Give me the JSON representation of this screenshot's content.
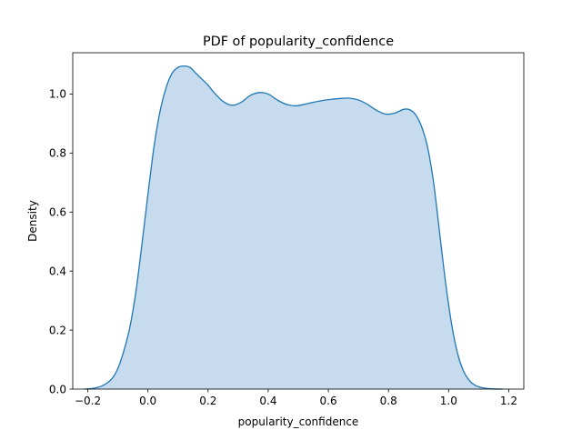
{
  "chart_data": {
    "type": "area",
    "title": "PDF of popularity_confidence",
    "xlabel": "popularity_confidence",
    "ylabel": "Density",
    "xlim": [
      -0.25,
      1.25
    ],
    "ylim": [
      0.0,
      1.14
    ],
    "xticks": [
      -0.2,
      0.0,
      0.2,
      0.4,
      0.6,
      0.8,
      1.0,
      1.2
    ],
    "xtick_labels": [
      "−0.2",
      "0.0",
      "0.2",
      "0.4",
      "0.6",
      "0.8",
      "1.0",
      "1.2"
    ],
    "yticks": [
      0.0,
      0.2,
      0.4,
      0.6,
      0.8,
      1.0
    ],
    "ytick_labels": [
      "0.0",
      "0.2",
      "0.4",
      "0.6",
      "0.8",
      "1.0"
    ],
    "grid": false,
    "line_color": "#1f77b4",
    "fill_color": "#c6dcee",
    "series": [
      {
        "name": "popularity_confidence",
        "x": [
          -0.21,
          -0.18,
          -0.15,
          -0.12,
          -0.1,
          -0.08,
          -0.06,
          -0.04,
          -0.02,
          0.0,
          0.02,
          0.04,
          0.06,
          0.08,
          0.1,
          0.12,
          0.14,
          0.16,
          0.18,
          0.2,
          0.22,
          0.25,
          0.28,
          0.31,
          0.34,
          0.37,
          0.4,
          0.43,
          0.46,
          0.49,
          0.52,
          0.55,
          0.58,
          0.61,
          0.64,
          0.67,
          0.7,
          0.73,
          0.76,
          0.79,
          0.82,
          0.85,
          0.87,
          0.89,
          0.91,
          0.93,
          0.95,
          0.97,
          0.99,
          1.01,
          1.03,
          1.05,
          1.07,
          1.09,
          1.11,
          1.13,
          1.15,
          1.18
        ],
        "y": [
          0.0,
          0.003,
          0.012,
          0.035,
          0.07,
          0.13,
          0.21,
          0.33,
          0.49,
          0.66,
          0.82,
          0.94,
          1.02,
          1.07,
          1.09,
          1.095,
          1.09,
          1.07,
          1.05,
          1.03,
          1.005,
          0.975,
          0.962,
          0.972,
          0.995,
          1.005,
          1.0,
          0.98,
          0.965,
          0.96,
          0.965,
          0.972,
          0.978,
          0.982,
          0.985,
          0.986,
          0.98,
          0.965,
          0.945,
          0.932,
          0.935,
          0.948,
          0.947,
          0.93,
          0.89,
          0.82,
          0.7,
          0.53,
          0.36,
          0.22,
          0.12,
          0.06,
          0.028,
          0.012,
          0.005,
          0.002,
          0.0006,
          0.0
        ]
      }
    ]
  }
}
